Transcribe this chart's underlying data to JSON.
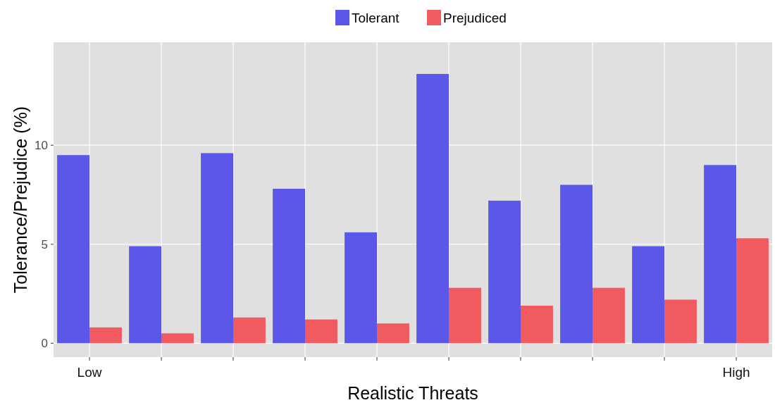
{
  "chart_data": {
    "type": "bar",
    "xlabel": "Realistic Threats",
    "ylabel": "Tolerance/Prejudice (%)",
    "categories": [
      "Low",
      null,
      null,
      null,
      null,
      null,
      null,
      null,
      null,
      "High"
    ],
    "series": [
      {
        "name": "Tolerant",
        "color": "#5b57e8",
        "values": [
          9.5,
          4.9,
          9.6,
          7.8,
          5.6,
          13.6,
          7.2,
          8.0,
          4.9,
          9.0
        ]
      },
      {
        "name": "Prejudiced",
        "color": "#f15a5e",
        "values": [
          0.8,
          0.5,
          1.3,
          1.2,
          1.0,
          2.8,
          1.9,
          2.8,
          2.2,
          5.3
        ]
      }
    ],
    "ylim": [
      -0.7,
      15.2
    ],
    "yticks": [
      0,
      5,
      10
    ],
    "grid": true,
    "legend": "top"
  }
}
